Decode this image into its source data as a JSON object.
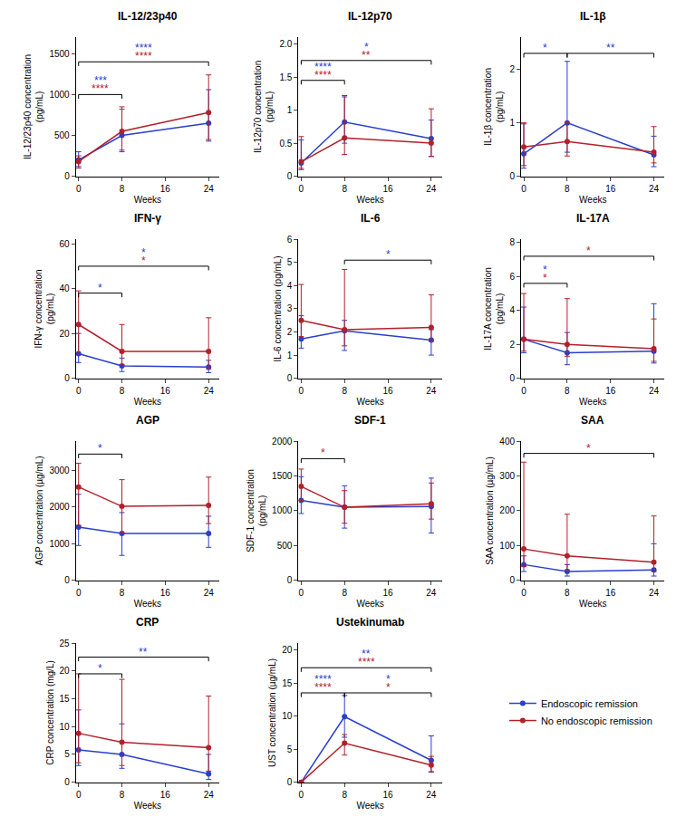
{
  "chart_data": [
    {
      "type": "line",
      "title": "IL-12/23p40",
      "x_label": "Weeks",
      "y_label": "IL-12/23p40 concentration (pg/mL)",
      "x": [
        0,
        8,
        24
      ],
      "xlim": [
        -0.5,
        26
      ],
      "xticks": [
        0,
        8,
        16,
        24
      ],
      "ylim": [
        0,
        1700
      ],
      "yticks": [
        0,
        500,
        1000,
        1500
      ],
      "grid": false,
      "series": [
        {
          "name": "Endoscopic remission",
          "color": "#2a3fcc",
          "marker": "circle",
          "values": [
            200,
            500,
            650
          ],
          "lower": [
            120,
            320,
            430
          ],
          "upper": [
            300,
            820,
            1060
          ]
        },
        {
          "name": "No endoscopic remission",
          "color": "#b3202a",
          "marker": "circle",
          "values": [
            180,
            550,
            780
          ],
          "lower": [
            100,
            300,
            450
          ],
          "upper": [
            250,
            850,
            1240
          ]
        }
      ],
      "significance": [
        {
          "from": 0,
          "to": 8,
          "y": 1000,
          "marks": [
            {
              "text": "***",
              "color": "#2a3fcc"
            },
            {
              "text": "****",
              "color": "#b3202a"
            }
          ]
        },
        {
          "from": 0,
          "to": 24,
          "y": 1400,
          "marks": [
            {
              "text": "****",
              "color": "#2a3fcc"
            },
            {
              "text": "****",
              "color": "#b3202a"
            }
          ]
        }
      ]
    },
    {
      "type": "line",
      "title": "IL-12p70",
      "x_label": "Weeks",
      "y_label": "IL-12p70 concentration (pg/mL)",
      "x": [
        0,
        8,
        24
      ],
      "xlim": [
        -0.5,
        26
      ],
      "xticks": [
        0,
        8,
        16,
        24
      ],
      "ylim": [
        0,
        2.1
      ],
      "yticks": [
        0,
        0.5,
        1,
        1.5,
        {
          "value": 2,
          "label": "2.0"
        }
      ],
      "grid": false,
      "series": [
        {
          "name": "Endoscopic remission",
          "color": "#2a3fcc",
          "marker": "circle",
          "values": [
            0.2,
            0.82,
            0.57
          ],
          "lower": [
            0.1,
            0.5,
            0.3
          ],
          "upper": [
            0.55,
            1.2,
            0.85
          ]
        },
        {
          "name": "No endoscopic remission",
          "color": "#b3202a",
          "marker": "circle",
          "values": [
            0.22,
            0.58,
            0.5
          ],
          "lower": [
            0.12,
            0.33,
            0.3
          ],
          "upper": [
            0.6,
            1.22,
            1.02
          ]
        }
      ],
      "significance": [
        {
          "from": 0,
          "to": 8,
          "y": 1.45,
          "marks": [
            {
              "text": "****",
              "color": "#2a3fcc"
            },
            {
              "text": "****",
              "color": "#b3202a"
            }
          ]
        },
        {
          "from": 0,
          "to": 24,
          "y": 1.75,
          "marks": [
            {
              "text": "*",
              "color": "#2a3fcc"
            },
            {
              "text": "**",
              "color": "#b3202a"
            }
          ]
        }
      ]
    },
    {
      "type": "line",
      "title": "IL-1β",
      "x_label": "Weeks",
      "y_label": "IL-1β concentration (pg/mL)",
      "x": [
        0,
        8,
        24
      ],
      "xlim": [
        -0.5,
        26
      ],
      "xticks": [
        0,
        8,
        16,
        24
      ],
      "ylim": [
        0,
        2.6
      ],
      "yticks": [
        0,
        1,
        2
      ],
      "grid": false,
      "series": [
        {
          "name": "Endoscopic remission",
          "color": "#2a3fcc",
          "marker": "circle",
          "values": [
            0.42,
            1.0,
            0.4
          ],
          "lower": [
            0.15,
            0.45,
            0.18
          ],
          "upper": [
            0.98,
            2.15,
            0.75
          ]
        },
        {
          "name": "No endoscopic remission",
          "color": "#b3202a",
          "marker": "circle",
          "values": [
            0.55,
            0.65,
            0.45
          ],
          "lower": [
            0.2,
            0.38,
            0.25
          ],
          "upper": [
            1.0,
            1.0,
            0.93
          ]
        }
      ],
      "significance": [
        {
          "from": 0,
          "to": 8,
          "y": 2.3,
          "marks": [
            {
              "text": "*",
              "color": "#2a3fcc"
            }
          ]
        },
        {
          "from": 8,
          "to": 24,
          "y": 2.3,
          "marks": [
            {
              "text": "**",
              "color": "#2a3fcc"
            }
          ]
        }
      ]
    },
    {
      "type": "line",
      "title": "IFN-γ",
      "x_label": "Weeks",
      "y_label": "IFN-γ concentration (pg/mL)",
      "x": [
        0,
        8,
        24
      ],
      "xlim": [
        -0.5,
        26
      ],
      "xticks": [
        0,
        8,
        16,
        24
      ],
      "ylim": [
        0,
        62
      ],
      "yticks": [
        0,
        20,
        40,
        60
      ],
      "grid": false,
      "series": [
        {
          "name": "Endoscopic remission",
          "color": "#2a3fcc",
          "marker": "circle",
          "values": [
            11,
            5.5,
            5
          ],
          "lower": [
            7,
            3,
            2.5
          ],
          "upper": [
            20,
            9,
            8
          ]
        },
        {
          "name": "No endoscopic remission",
          "color": "#b3202a",
          "marker": "circle",
          "values": [
            24,
            12,
            12
          ],
          "lower": [
            11,
            6,
            4
          ],
          "upper": [
            39,
            24,
            27
          ]
        }
      ],
      "significance": [
        {
          "from": 0,
          "to": 8,
          "y": 38,
          "marks": [
            {
              "text": "*",
              "color": "#2a3fcc"
            }
          ]
        },
        {
          "from": 0,
          "to": 24,
          "y": 50,
          "marks": [
            {
              "text": "*",
              "color": "#2a3fcc"
            },
            {
              "text": "*",
              "color": "#b3202a"
            }
          ]
        }
      ]
    },
    {
      "type": "line",
      "title": "IL-6",
      "x_label": "Weeks",
      "y_label": "IL-6 concentration (pg/mL)",
      "x": [
        0,
        8,
        24
      ],
      "xlim": [
        -0.5,
        26
      ],
      "xticks": [
        0,
        8,
        16,
        24
      ],
      "ylim": [
        0,
        6
      ],
      "yticks": [
        0,
        1,
        2,
        3,
        4,
        5,
        6
      ],
      "grid": false,
      "series": [
        {
          "name": "Endoscopic remission",
          "color": "#2a3fcc",
          "marker": "circle",
          "values": [
            1.7,
            2.05,
            1.65
          ],
          "lower": [
            1.3,
            1.2,
            1.0
          ],
          "upper": [
            2.7,
            2.5,
            2.1
          ]
        },
        {
          "name": "No endoscopic remission",
          "color": "#b3202a",
          "marker": "circle",
          "values": [
            2.5,
            2.1,
            2.2
          ],
          "lower": [
            1.8,
            1.4,
            1.6
          ],
          "upper": [
            4.05,
            4.7,
            3.6
          ]
        }
      ],
      "significance": [
        {
          "from": 8,
          "to": 24,
          "y": 5.1,
          "marks": [
            {
              "text": "*",
              "color": "#2a3fcc"
            }
          ]
        }
      ]
    },
    {
      "type": "line",
      "title": "IL-17A",
      "x_label": "Weeks",
      "y_label": "IL-17A concentration (pg/mL)",
      "x": [
        0,
        8,
        24
      ],
      "xlim": [
        -0.5,
        26
      ],
      "xticks": [
        0,
        8,
        16,
        24
      ],
      "ylim": [
        0,
        8.2
      ],
      "yticks": [
        0,
        2,
        4,
        6,
        8
      ],
      "grid": false,
      "series": [
        {
          "name": "Endoscopic remission",
          "color": "#2a3fcc",
          "marker": "circle",
          "values": [
            2.3,
            1.5,
            1.6
          ],
          "lower": [
            1.5,
            0.8,
            0.9
          ],
          "upper": [
            4.2,
            2.7,
            4.4
          ]
        },
        {
          "name": "No endoscopic remission",
          "color": "#b3202a",
          "marker": "circle",
          "values": [
            2.3,
            2.0,
            1.75
          ],
          "lower": [
            1.6,
            1.3,
            1.0
          ],
          "upper": [
            5.0,
            4.7,
            3.5
          ]
        }
      ],
      "significance": [
        {
          "from": 0,
          "to": 8,
          "y": 5.6,
          "marks": [
            {
              "text": "*",
              "color": "#2a3fcc"
            },
            {
              "text": "*",
              "color": "#b3202a"
            }
          ]
        },
        {
          "from": 0,
          "to": 24,
          "y": 7.2,
          "marks": [
            {
              "text": "*",
              "color": "#b3202a"
            }
          ]
        }
      ]
    },
    {
      "type": "line",
      "title": "AGP",
      "x_label": "Weeks",
      "y_label": "AGP concentration (µg/mL)",
      "x": [
        0,
        8,
        24
      ],
      "xlim": [
        -0.5,
        26
      ],
      "xticks": [
        0,
        8,
        16,
        24
      ],
      "ylim": [
        0,
        3800
      ],
      "yticks": [
        0,
        1000,
        2000,
        3000
      ],
      "grid": false,
      "series": [
        {
          "name": "Endoscopic remission",
          "color": "#2a3fcc",
          "marker": "circle",
          "values": [
            1450,
            1280,
            1280
          ],
          "lower": [
            950,
            680,
            900
          ],
          "upper": [
            2350,
            1850,
            1750
          ]
        },
        {
          "name": "No endoscopic remission",
          "color": "#b3202a",
          "marker": "circle",
          "values": [
            2550,
            2020,
            2050
          ],
          "lower": [
            1500,
            1300,
            1550
          ],
          "upper": [
            3200,
            2750,
            2820
          ]
        }
      ],
      "significance": [
        {
          "from": 0,
          "to": 8,
          "y": 3450,
          "marks": [
            {
              "text": "*",
              "color": "#2a3fcc"
            }
          ]
        }
      ]
    },
    {
      "type": "line",
      "title": "SDF-1",
      "x_label": "Weeks",
      "y_label": "SDF-1 concentration (pg/mL)",
      "x": [
        0,
        8,
        24
      ],
      "xlim": [
        -0.5,
        26
      ],
      "xticks": [
        0,
        8,
        16,
        24
      ],
      "ylim": [
        0,
        2000
      ],
      "yticks": [
        0,
        500,
        1000,
        1500,
        2000
      ],
      "grid": false,
      "series": [
        {
          "name": "Endoscopic remission",
          "color": "#2a3fcc",
          "marker": "circle",
          "values": [
            1150,
            1050,
            1060
          ],
          "lower": [
            960,
            750,
            680
          ],
          "upper": [
            1490,
            1360,
            1470
          ]
        },
        {
          "name": "No endoscopic remission",
          "color": "#b3202a",
          "marker": "circle",
          "values": [
            1350,
            1050,
            1100
          ],
          "lower": [
            1150,
            820,
            880
          ],
          "upper": [
            1600,
            1290,
            1400
          ]
        }
      ],
      "significance": [
        {
          "from": 0,
          "to": 8,
          "y": 1750,
          "marks": [
            {
              "text": "*",
              "color": "#b3202a"
            }
          ]
        }
      ]
    },
    {
      "type": "line",
      "title": "SAA",
      "x_label": "Weeks",
      "y_label": "SAA concentration (µg/mL)",
      "x": [
        0,
        8,
        24
      ],
      "xlim": [
        -0.5,
        26
      ],
      "xticks": [
        0,
        8,
        16,
        24
      ],
      "ylim": [
        0,
        400
      ],
      "yticks": [
        0,
        100,
        200,
        300,
        400
      ],
      "grid": false,
      "series": [
        {
          "name": "Endoscopic remission",
          "color": "#2a3fcc",
          "marker": "circle",
          "values": [
            45,
            25,
            30
          ],
          "lower": [
            25,
            12,
            12
          ],
          "upper": [
            70,
            45,
            105
          ]
        },
        {
          "name": "No endoscopic remission",
          "color": "#b3202a",
          "marker": "circle",
          "values": [
            90,
            70,
            52
          ],
          "lower": [
            40,
            30,
            25
          ],
          "upper": [
            340,
            190,
            185
          ]
        }
      ],
      "significance": [
        {
          "from": 0,
          "to": 24,
          "y": 365,
          "marks": [
            {
              "text": "*",
              "color": "#b3202a"
            }
          ]
        }
      ]
    },
    {
      "type": "line",
      "title": "CRP",
      "x_label": "Weeks",
      "y_label": "CRP concentration (mg/L)",
      "x": [
        0,
        8,
        24
      ],
      "xlim": [
        -0.5,
        26
      ],
      "xticks": [
        0,
        8,
        16,
        24
      ],
      "ylim": [
        0,
        25
      ],
      "yticks": [
        0,
        5,
        10,
        15,
        20,
        25
      ],
      "grid": false,
      "series": [
        {
          "name": "Endoscopic remission",
          "color": "#2a3fcc",
          "marker": "circle",
          "values": [
            5.8,
            5.0,
            1.5
          ],
          "lower": [
            3,
            2.5,
            0.5
          ],
          "upper": [
            13,
            10.5,
            5
          ]
        },
        {
          "name": "No endoscopic remission",
          "color": "#b3202a",
          "marker": "circle",
          "values": [
            8.8,
            7.2,
            6.2
          ],
          "lower": [
            3.5,
            3,
            2
          ],
          "upper": [
            19.5,
            18.5,
            15.5
          ]
        }
      ],
      "significance": [
        {
          "from": 0,
          "to": 8,
          "y": 19.5,
          "marks": [
            {
              "text": "*",
              "color": "#2a3fcc"
            }
          ]
        },
        {
          "from": 0,
          "to": 24,
          "y": 22.5,
          "marks": [
            {
              "text": "**",
              "color": "#2a3fcc"
            }
          ]
        }
      ]
    },
    {
      "type": "line",
      "title": "Ustekinumab",
      "x_label": "Weeks",
      "y_label": "UST concentration (µg/mL)",
      "x": [
        0,
        8,
        24
      ],
      "xlim": [
        -0.5,
        26
      ],
      "xticks": [
        0,
        8,
        16,
        24
      ],
      "ylim": [
        0,
        21
      ],
      "yticks": [
        0,
        5,
        10,
        15,
        20
      ],
      "grid": false,
      "legend": "lower right",
      "series": [
        {
          "name": "Endoscopic remission",
          "color": "#2a3fcc",
          "marker": "circle",
          "values": [
            0,
            9.9,
            3.3
          ],
          "lower": [
            0,
            6.8,
            1.6
          ],
          "upper": [
            0,
            13.1,
            7.0
          ]
        },
        {
          "name": "No endoscopic remission",
          "color": "#b3202a",
          "marker": "circle",
          "values": [
            0,
            5.9,
            2.6
          ],
          "lower": [
            0,
            4.1,
            1.5
          ],
          "upper": [
            0,
            7.2,
            3.9
          ]
        }
      ],
      "significance": [
        {
          "from": 0,
          "to": 8,
          "y": 13.5,
          "marks": [
            {
              "text": "****",
              "color": "#2a3fcc"
            },
            {
              "text": "****",
              "color": "#b3202a"
            }
          ]
        },
        {
          "from": 8,
          "to": 24,
          "y": 13.5,
          "marks": [
            {
              "text": "*",
              "color": "#2a3fcc"
            },
            {
              "text": "*",
              "color": "#b3202a"
            }
          ]
        },
        {
          "from": 0,
          "to": 24,
          "y": 17.3,
          "marks": [
            {
              "text": "**",
              "color": "#2a3fcc"
            },
            {
              "text": "****",
              "color": "#b3202a"
            }
          ]
        }
      ]
    }
  ]
}
